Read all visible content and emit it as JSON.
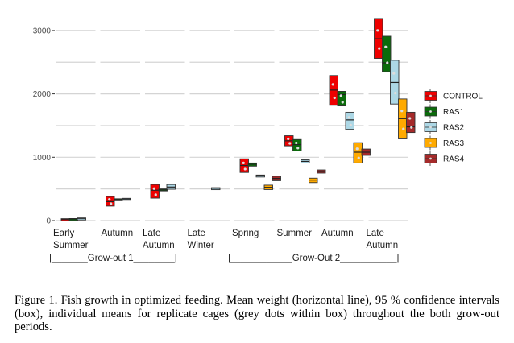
{
  "chart_data": {
    "type": "boxplot",
    "title": "",
    "xlabel": "",
    "ylabel": "",
    "ylim": [
      0,
      3250
    ],
    "yticks": [
      0,
      1000,
      2000,
      3000
    ],
    "grid": true,
    "legend_position": "right",
    "categories": [
      "Early\nSummer",
      "Autumn",
      "Late\nAutumn",
      "Late\nWinter",
      "Spring",
      "Summer",
      "Autumn",
      "Late\nAutumn"
    ],
    "category_lines": [
      [
        "Early",
        "Summer"
      ],
      [
        "Autumn"
      ],
      [
        "Late",
        "Autumn"
      ],
      [
        "Late",
        "Winter"
      ],
      [
        "Spring"
      ],
      [
        "Summer"
      ],
      [
        "Autumn"
      ],
      [
        "Late",
        "Autumn"
      ]
    ],
    "periods": [
      {
        "label": "|_______Grow-out 1________|",
        "categories": [
          0,
          3
        ]
      },
      {
        "label": "|____________Grow-Out 2___________|",
        "categories": [
          4,
          7
        ]
      }
    ],
    "series": [
      {
        "name": "CONTROL",
        "color": "#ee0000",
        "boxes": [
          {
            "cat": 0,
            "low": 15,
            "high": 30,
            "mean": 22
          },
          {
            "cat": 1,
            "low": 230,
            "high": 380,
            "mean": 300
          },
          {
            "cat": 2,
            "low": 355,
            "high": 570,
            "mean": 480
          },
          {
            "cat": 4,
            "low": 760,
            "high": 975,
            "mean": 870
          },
          {
            "cat": 5,
            "low": 1180,
            "high": 1340,
            "mean": 1260
          },
          {
            "cat": 6,
            "low": 1820,
            "high": 2290,
            "mean": 2060
          },
          {
            "cat": 7,
            "low": 2560,
            "high": 3190,
            "mean": 2870
          }
        ]
      },
      {
        "name": "RAS1",
        "color": "#0b6b0b",
        "boxes": [
          {
            "cat": 0,
            "low": 20,
            "high": 32,
            "mean": 26
          },
          {
            "cat": 1,
            "low": 320,
            "high": 345,
            "mean": 330
          },
          {
            "cat": 2,
            "low": 470,
            "high": 500,
            "mean": 485
          },
          {
            "cat": 4,
            "low": 860,
            "high": 910,
            "mean": 890
          },
          {
            "cat": 5,
            "low": 1100,
            "high": 1280,
            "mean": 1200
          },
          {
            "cat": 6,
            "low": 1810,
            "high": 2040,
            "mean": 1990
          },
          {
            "cat": 7,
            "low": 2350,
            "high": 2910,
            "mean": 2490
          }
        ]
      },
      {
        "name": "RAS2",
        "color": "#add8e6",
        "boxes": [
          {
            "cat": 0,
            "low": 28,
            "high": 42,
            "mean": 35
          },
          {
            "cat": 1,
            "low": 330,
            "high": 352,
            "mean": 340
          },
          {
            "cat": 2,
            "low": 495,
            "high": 570,
            "mean": 530
          },
          {
            "cat": 3,
            "low": 500,
            "high": 520,
            "mean": 510
          },
          {
            "cat": 4,
            "low": 700,
            "high": 720,
            "mean": 710
          },
          {
            "cat": 5,
            "low": 910,
            "high": 960,
            "mean": 935
          },
          {
            "cat": 6,
            "low": 1440,
            "high": 1710,
            "mean": 1590
          },
          {
            "cat": 7,
            "low": 1840,
            "high": 2530,
            "mean": 2180
          }
        ]
      },
      {
        "name": "RAS3",
        "color": "#ffaa00",
        "boxes": [
          {
            "cat": 4,
            "low": 490,
            "high": 560,
            "mean": 525
          },
          {
            "cat": 5,
            "low": 600,
            "high": 670,
            "mean": 640
          },
          {
            "cat": 6,
            "low": 910,
            "high": 1230,
            "mean": 1080
          },
          {
            "cat": 7,
            "low": 1290,
            "high": 1920,
            "mean": 1610
          }
        ]
      },
      {
        "name": "RAS4",
        "color": "#a52a2a",
        "boxes": [
          {
            "cat": 4,
            "low": 630,
            "high": 700,
            "mean": 665
          },
          {
            "cat": 5,
            "low": 750,
            "high": 800,
            "mean": 775
          },
          {
            "cat": 6,
            "low": 1030,
            "high": 1130,
            "mean": 1080
          },
          {
            "cat": 7,
            "low": 1390,
            "high": 1710,
            "mean": 1480
          }
        ]
      }
    ]
  },
  "caption": "Figure 1. Fish growth in optimized feeding. Mean weight (horizontal line), 95 % confidence intervals (box), individual means for replicate cages (grey dots within box) throughout the both grow-out periods."
}
